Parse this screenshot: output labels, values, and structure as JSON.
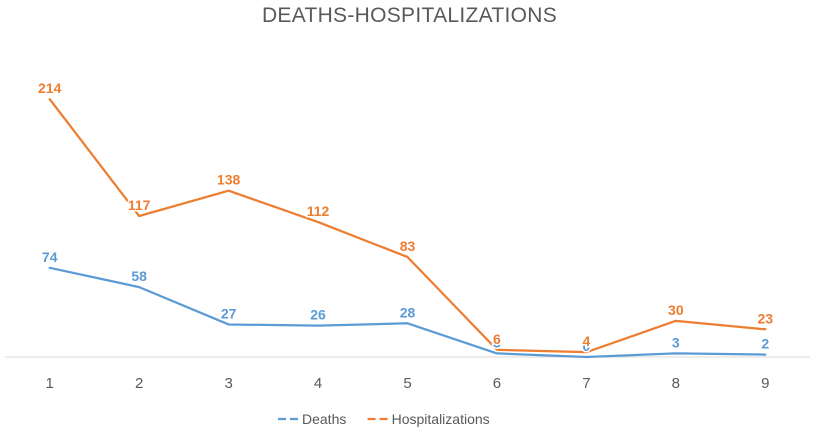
{
  "chart_data": {
    "type": "line",
    "title": "DEATHS-HOSPITALIZATIONS",
    "categories": [
      "1",
      "2",
      "3",
      "4",
      "5",
      "6",
      "7",
      "8",
      "9"
    ],
    "series": [
      {
        "name": "Deaths",
        "color": "#5B9BD5",
        "values": [
          74,
          58,
          27,
          26,
          28,
          3,
          0,
          3,
          2
        ]
      },
      {
        "name": "Hospitalizations",
        "color": "#ED7D31",
        "values": [
          214,
          117,
          138,
          112,
          83,
          6,
          4,
          30,
          23
        ]
      }
    ],
    "xlabel": "",
    "ylabel": "",
    "ylim": [
      0,
      250
    ],
    "grid": false,
    "legend_position": "bottom",
    "axis_color": "#D9D9D9"
  }
}
